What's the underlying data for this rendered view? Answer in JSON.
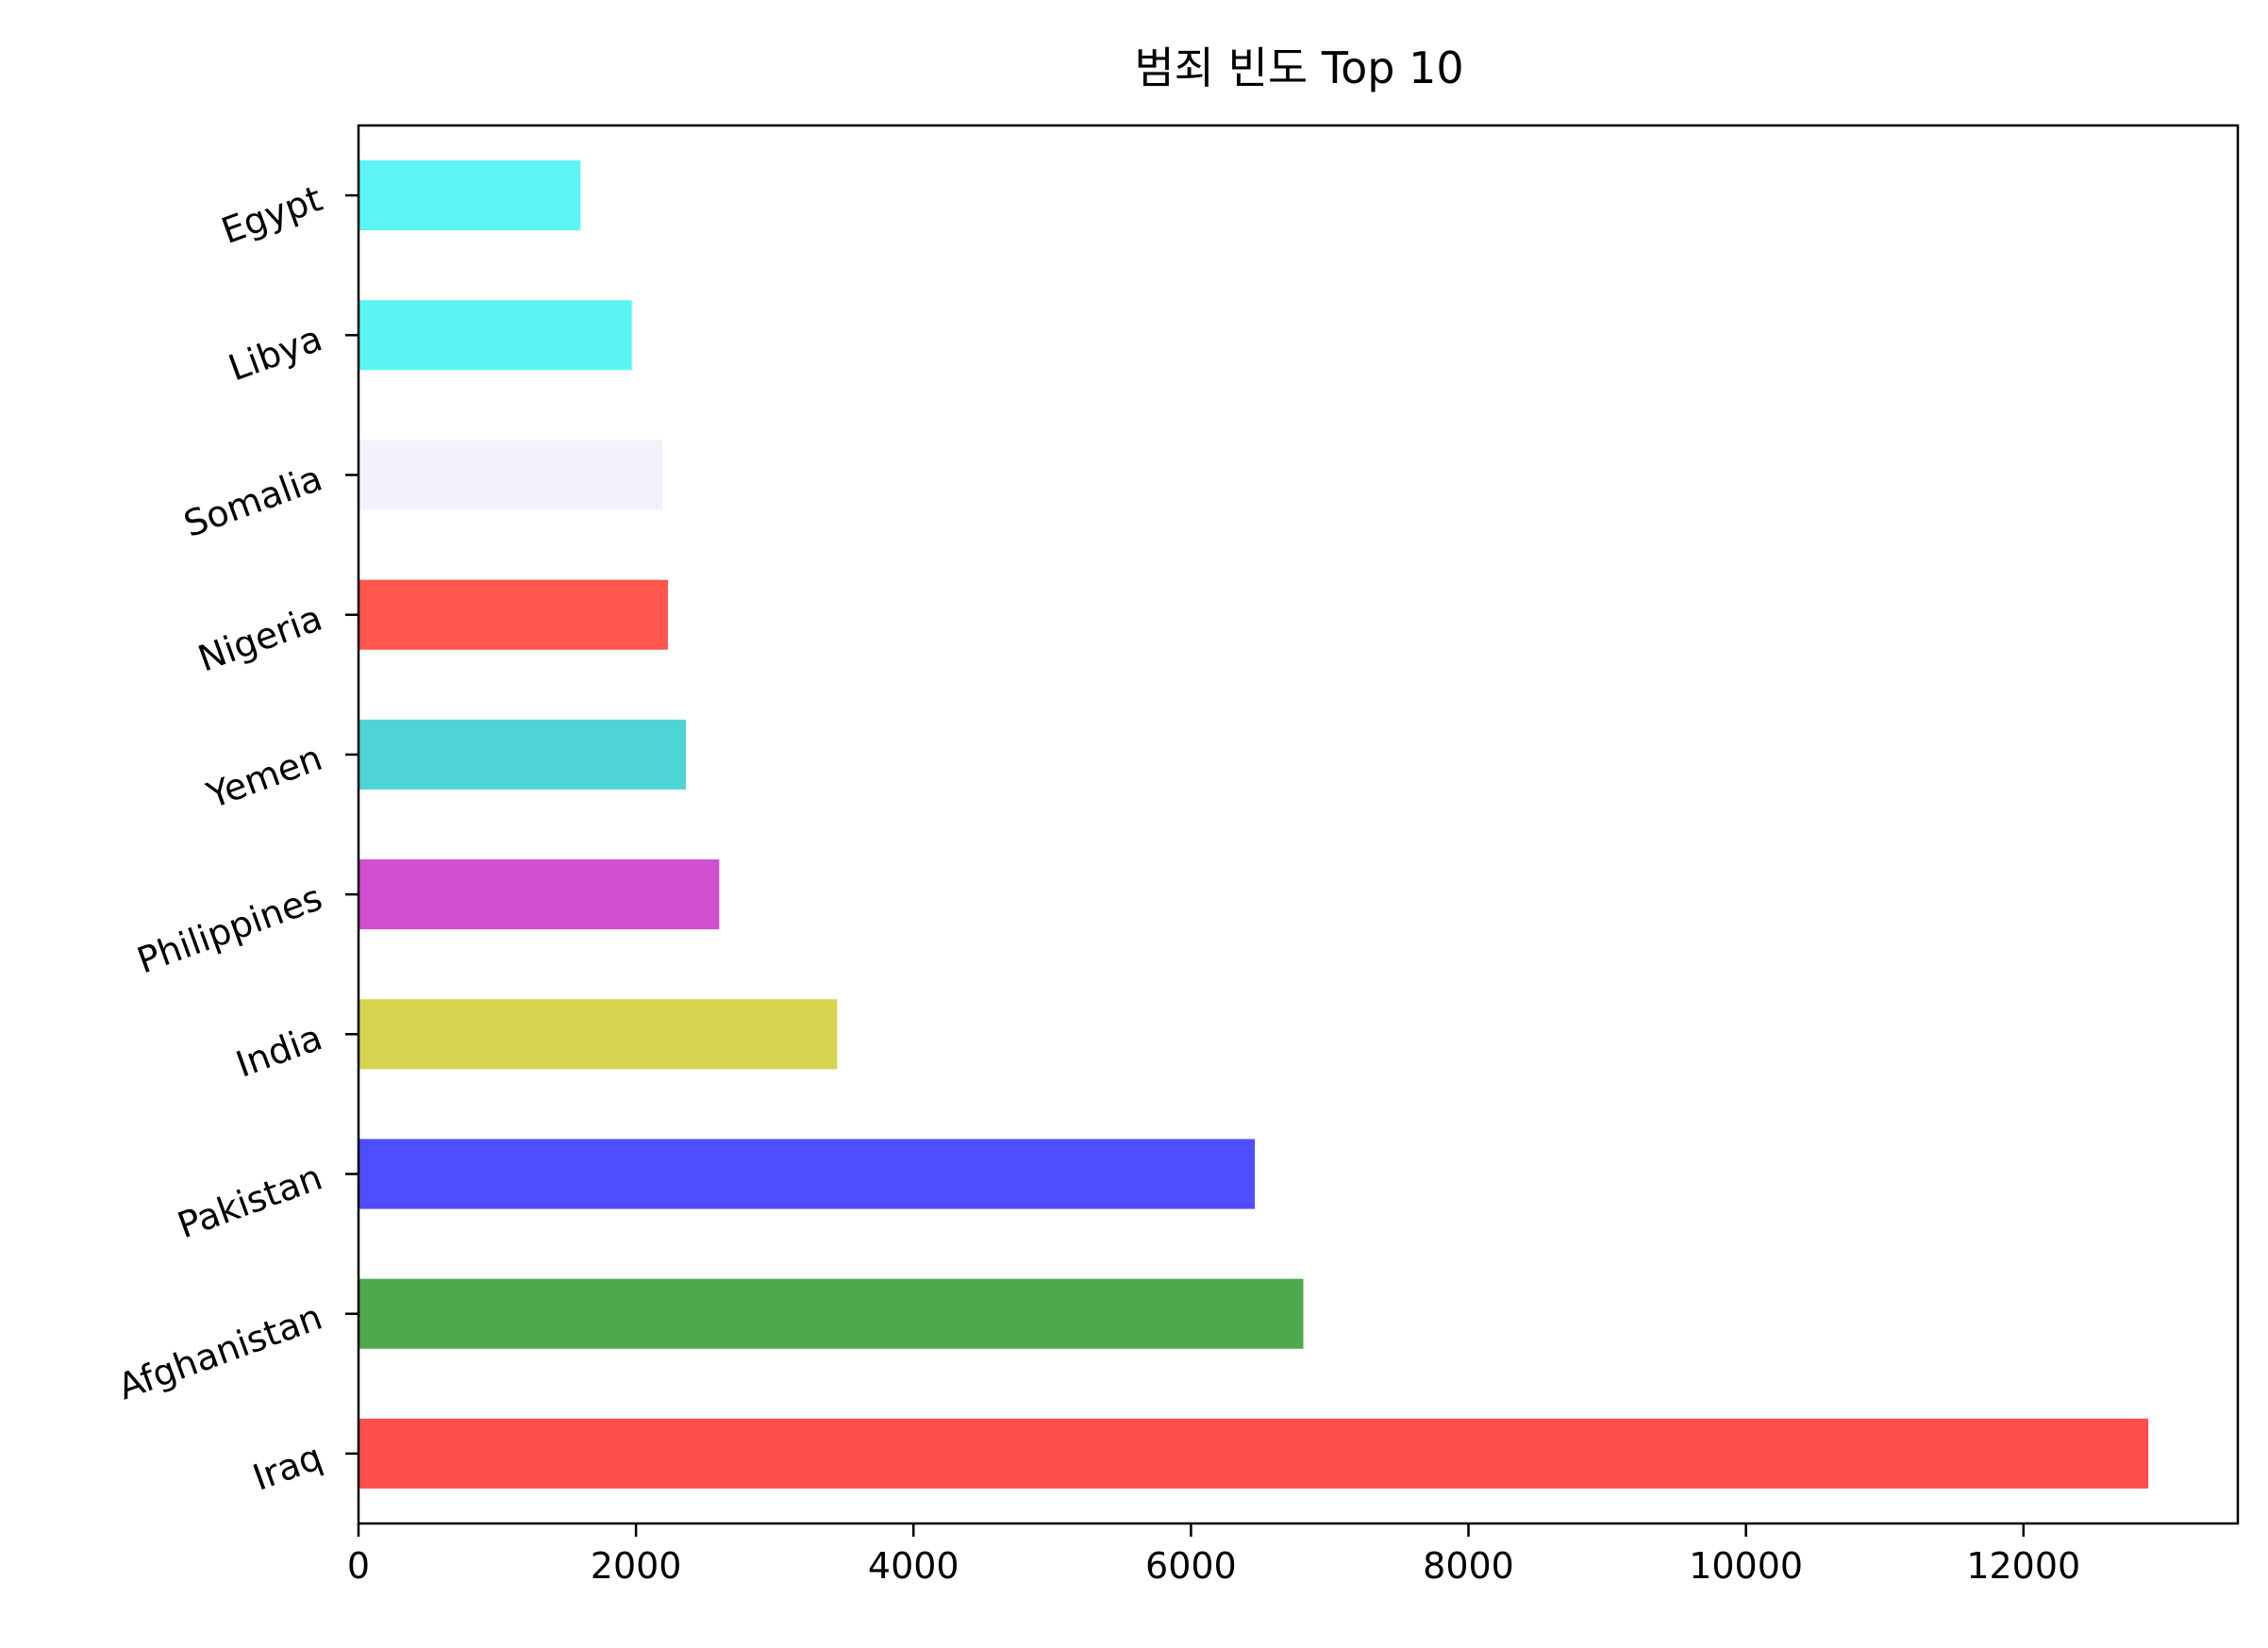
{
  "chart_data": {
    "type": "bar",
    "orientation": "horizontal",
    "title": "범죄 빈도 Top 10",
    "xlabel": "",
    "ylabel": "",
    "categories": [
      "Iraq",
      "Afghanistan",
      "Pakistan",
      "India",
      "Philippines",
      "Yemen",
      "Nigeria",
      "Somalia",
      "Libya",
      "Egypt"
    ],
    "values": [
      12900,
      6810,
      6460,
      3450,
      2600,
      2360,
      2230,
      2190,
      1970,
      1600
    ],
    "colors": [
      "#ff4e4e",
      "#4ea94e",
      "#4e4eff",
      "#d4d44e",
      "#d04ed0",
      "#4ed4d4",
      "#ff564e",
      "#f2f2fc",
      "#5af5f2",
      "#5cf4f4"
    ],
    "xlim": [
      0,
      13545
    ],
    "xticks": [
      0,
      2000,
      4000,
      6000,
      8000,
      10000,
      12000
    ],
    "grid": false,
    "legend": "none"
  }
}
